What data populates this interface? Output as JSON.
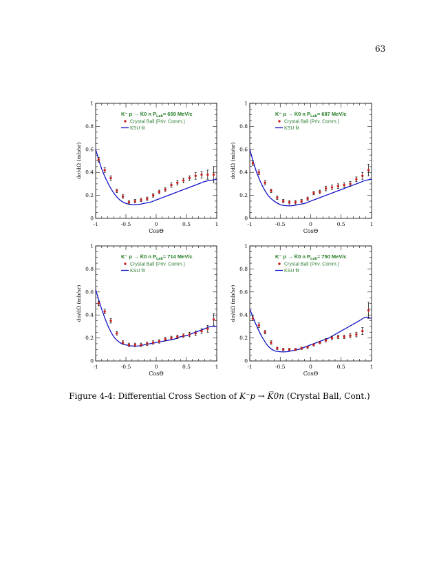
{
  "page": {
    "number": "63"
  },
  "caption": {
    "prefix": "Figure 4-4: Differential Cross Section of ",
    "suffix": " (Crystal Ball, Cont.)",
    "reaction": "K⁻p → K̅0n"
  },
  "colors": {
    "data": "#cc1f1f",
    "fit": "#1010c8",
    "legend_title": "#1f7a1f",
    "legend_text": "#2e7d32"
  },
  "chart_data": [
    {
      "type": "scatter",
      "title_prefix": "K⁻ p → K̅0 n",
      "title_plab": "P",
      "title_plab_sub": "Lab",
      "title_value": "= 659 MeV/c",
      "xlabel": "CosΘ",
      "ylabel": "dσ/dΩ (mb/sr)",
      "xlim": [
        -1,
        1
      ],
      "ylim": [
        0,
        1
      ],
      "xticks": [
        "-1",
        "-0.5",
        "0",
        "0.5",
        "1"
      ],
      "yticks": [
        "0",
        "0.2",
        "0.4",
        "0.6",
        "0.8",
        "1"
      ],
      "legend": [
        "Crystal Ball (Priv. Comm.)",
        "KSU fit"
      ],
      "series": [
        {
          "name": "Crystal Ball (Priv. Comm.)",
          "x": [
            -0.95,
            -0.85,
            -0.75,
            -0.65,
            -0.55,
            -0.45,
            -0.35,
            -0.25,
            -0.15,
            -0.05,
            0.05,
            0.15,
            0.25,
            0.35,
            0.45,
            0.55,
            0.65,
            0.75,
            0.85,
            0.95
          ],
          "y": [
            0.51,
            0.42,
            0.35,
            0.24,
            0.19,
            0.14,
            0.15,
            0.16,
            0.17,
            0.2,
            0.23,
            0.25,
            0.29,
            0.31,
            0.33,
            0.35,
            0.37,
            0.38,
            0.38,
            0.38
          ],
          "err": [
            0.02,
            0.02,
            0.02,
            0.015,
            0.015,
            0.015,
            0.015,
            0.015,
            0.015,
            0.015,
            0.015,
            0.015,
            0.02,
            0.02,
            0.02,
            0.02,
            0.03,
            0.03,
            0.04,
            0.07
          ]
        },
        {
          "name": "KSU fit",
          "x": [
            -1,
            -0.9,
            -0.8,
            -0.7,
            -0.6,
            -0.5,
            -0.4,
            -0.3,
            -0.2,
            -0.1,
            0,
            0.1,
            0.2,
            0.3,
            0.4,
            0.5,
            0.6,
            0.7,
            0.8,
            0.9,
            1
          ],
          "y": [
            0.6,
            0.43,
            0.31,
            0.22,
            0.16,
            0.13,
            0.12,
            0.12,
            0.13,
            0.14,
            0.16,
            0.18,
            0.2,
            0.22,
            0.24,
            0.26,
            0.28,
            0.3,
            0.32,
            0.33,
            0.34
          ]
        }
      ]
    },
    {
      "type": "scatter",
      "title_prefix": "K⁻ p → K̅0 n",
      "title_plab": "P",
      "title_plab_sub": "Lab",
      "title_value": "= 687 MeV/c",
      "xlabel": "CosΘ",
      "ylabel": "dσ/dΩ (mb/sr)",
      "xlim": [
        -1,
        1
      ],
      "ylim": [
        0,
        1
      ],
      "xticks": [
        "-1",
        "-0.5",
        "0",
        "0.5",
        "1"
      ],
      "yticks": [
        "0",
        "0.2",
        "0.4",
        "0.6",
        "0.8",
        "1"
      ],
      "legend": [
        "Crystal Ball (Priv. Comm.)",
        "KSU fit"
      ],
      "series": [
        {
          "name": "Crystal Ball (Priv. Comm.)",
          "x": [
            -0.95,
            -0.85,
            -0.75,
            -0.65,
            -0.55,
            -0.45,
            -0.35,
            -0.25,
            -0.15,
            -0.05,
            0.05,
            0.15,
            0.25,
            0.35,
            0.45,
            0.55,
            0.65,
            0.75,
            0.85,
            0.95
          ],
          "y": [
            0.48,
            0.4,
            0.31,
            0.24,
            0.18,
            0.15,
            0.14,
            0.14,
            0.15,
            0.17,
            0.22,
            0.23,
            0.26,
            0.27,
            0.28,
            0.29,
            0.3,
            0.34,
            0.37,
            0.42
          ],
          "err": [
            0.02,
            0.02,
            0.02,
            0.015,
            0.015,
            0.015,
            0.015,
            0.015,
            0.015,
            0.015,
            0.015,
            0.015,
            0.02,
            0.02,
            0.02,
            0.02,
            0.02,
            0.02,
            0.03,
            0.05
          ]
        },
        {
          "name": "KSU fit",
          "x": [
            -1,
            -0.9,
            -0.8,
            -0.7,
            -0.6,
            -0.5,
            -0.4,
            -0.3,
            -0.2,
            -0.1,
            0,
            0.1,
            0.2,
            0.3,
            0.4,
            0.5,
            0.6,
            0.7,
            0.8,
            0.9,
            1
          ],
          "y": [
            0.6,
            0.42,
            0.29,
            0.2,
            0.15,
            0.12,
            0.11,
            0.11,
            0.12,
            0.13,
            0.15,
            0.17,
            0.19,
            0.21,
            0.23,
            0.25,
            0.27,
            0.29,
            0.31,
            0.33,
            0.34
          ]
        }
      ]
    },
    {
      "type": "scatter",
      "title_prefix": "K⁻ p → K̅0 n",
      "title_plab": "P",
      "title_plab_sub": "Lab",
      "title_value": "= 714 MeV/c",
      "xlabel": "CosΘ",
      "ylabel": "dσ/dΩ (mb/sr)",
      "xlim": [
        -1,
        1
      ],
      "ylim": [
        0,
        1
      ],
      "xticks": [
        "-1",
        "-0.5",
        "0",
        "0.5",
        "1"
      ],
      "yticks": [
        "0",
        "0.2",
        "0.4",
        "0.6",
        "0.8",
        "1"
      ],
      "legend": [
        "Crystal Ball (Priv. Comm.)",
        "KSU fit"
      ],
      "series": [
        {
          "name": "Crystal Ball (Priv. Comm.)",
          "x": [
            -0.95,
            -0.85,
            -0.75,
            -0.65,
            -0.55,
            -0.45,
            -0.35,
            -0.25,
            -0.15,
            -0.05,
            0.05,
            0.15,
            0.25,
            0.35,
            0.45,
            0.55,
            0.65,
            0.75,
            0.85,
            0.95
          ],
          "y": [
            0.5,
            0.43,
            0.35,
            0.24,
            0.16,
            0.14,
            0.14,
            0.14,
            0.15,
            0.16,
            0.17,
            0.19,
            0.2,
            0.21,
            0.22,
            0.23,
            0.24,
            0.26,
            0.28,
            0.36
          ],
          "err": [
            0.02,
            0.02,
            0.02,
            0.015,
            0.015,
            0.015,
            0.015,
            0.015,
            0.015,
            0.015,
            0.015,
            0.015,
            0.015,
            0.015,
            0.015,
            0.02,
            0.02,
            0.02,
            0.03,
            0.05
          ]
        },
        {
          "name": "KSU fit",
          "x": [
            -1,
            -0.9,
            -0.8,
            -0.7,
            -0.6,
            -0.5,
            -0.4,
            -0.3,
            -0.2,
            -0.1,
            0,
            0.1,
            0.2,
            0.3,
            0.4,
            0.5,
            0.6,
            0.7,
            0.8,
            0.9,
            1
          ],
          "y": [
            0.62,
            0.45,
            0.31,
            0.21,
            0.16,
            0.14,
            0.13,
            0.13,
            0.14,
            0.15,
            0.16,
            0.17,
            0.18,
            0.19,
            0.21,
            0.22,
            0.24,
            0.26,
            0.28,
            0.3,
            0.3
          ]
        }
      ]
    },
    {
      "type": "scatter",
      "title_prefix": "K⁻ p → K̅0 n",
      "title_plab": "P",
      "title_plab_sub": "Lab",
      "title_value": "= 750 MeV/c",
      "xlabel": "CosΘ",
      "ylabel": "dσ/dΩ (mb/sr)",
      "xlim": [
        -1,
        1
      ],
      "ylim": [
        0,
        1
      ],
      "xticks": [
        "-1",
        "-0.5",
        "0",
        "0.5",
        "1"
      ],
      "yticks": [
        "0",
        "0.2",
        "0.4",
        "0.6",
        "0.8",
        "1"
      ],
      "legend": [
        "Crystal Ball (Priv. Comm.)",
        "KSU fit"
      ],
      "series": [
        {
          "name": "Crystal Ball (Priv. Comm.)",
          "x": [
            -0.95,
            -0.85,
            -0.75,
            -0.65,
            -0.55,
            -0.45,
            -0.35,
            -0.25,
            -0.15,
            -0.05,
            0.05,
            0.15,
            0.25,
            0.35,
            0.45,
            0.55,
            0.65,
            0.75,
            0.85,
            0.95
          ],
          "y": [
            0.37,
            0.31,
            0.25,
            0.16,
            0.11,
            0.1,
            0.1,
            0.1,
            0.11,
            0.12,
            0.14,
            0.16,
            0.18,
            0.2,
            0.21,
            0.21,
            0.22,
            0.23,
            0.26,
            0.44
          ],
          "err": [
            0.02,
            0.02,
            0.015,
            0.015,
            0.01,
            0.01,
            0.01,
            0.01,
            0.01,
            0.01,
            0.01,
            0.01,
            0.015,
            0.015,
            0.015,
            0.015,
            0.02,
            0.02,
            0.03,
            0.07
          ]
        },
        {
          "name": "KSU fit",
          "x": [
            -1,
            -0.9,
            -0.8,
            -0.7,
            -0.6,
            -0.5,
            -0.4,
            -0.3,
            -0.2,
            -0.1,
            0,
            0.1,
            0.2,
            0.3,
            0.4,
            0.5,
            0.6,
            0.7,
            0.8,
            0.9,
            1
          ],
          "y": [
            0.45,
            0.32,
            0.21,
            0.13,
            0.09,
            0.08,
            0.08,
            0.09,
            0.1,
            0.12,
            0.14,
            0.16,
            0.18,
            0.2,
            0.23,
            0.26,
            0.29,
            0.32,
            0.35,
            0.38,
            0.37
          ]
        }
      ]
    }
  ]
}
